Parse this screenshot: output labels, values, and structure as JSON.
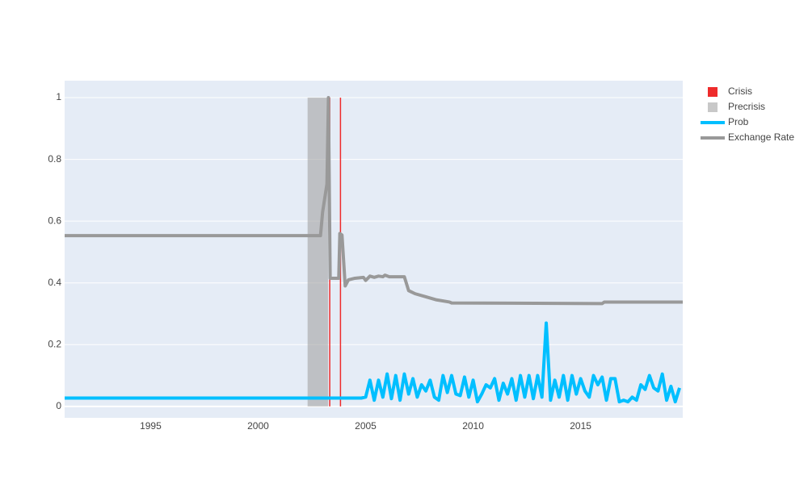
{
  "chart_data": {
    "type": "line",
    "xlim": [
      1991,
      2019.75
    ],
    "xticks": [
      1995,
      2000,
      2005,
      2010,
      2015
    ],
    "ylim": [
      -0.037,
      1.055
    ],
    "yticks": [
      0,
      0.2,
      0.4,
      0.6,
      0.8,
      1
    ],
    "ygrid": true,
    "xgrid": false,
    "legend": "outside-right",
    "series": [
      {
        "name": "Crisis",
        "type": "bar",
        "color": "#ee2b2b",
        "x": [
          2003.33,
          2003.83
        ],
        "values": [
          1,
          1
        ]
      },
      {
        "name": "Precrisis",
        "type": "bar",
        "color": "#a3a3a3",
        "x_start": [
          2002.3
        ],
        "x_end": [
          2003.25
        ],
        "values": [
          1
        ]
      },
      {
        "name": "Prob",
        "type": "line",
        "color": "#00bfff",
        "x": [
          1991,
          2004.8,
          2005,
          2005.2,
          2005.4,
          2005.6,
          2005.8,
          2006,
          2006.2,
          2006.4,
          2006.6,
          2006.8,
          2007,
          2007.2,
          2007.4,
          2007.6,
          2007.8,
          2008,
          2008.2,
          2008.4,
          2008.6,
          2008.8,
          2009,
          2009.2,
          2009.4,
          2009.6,
          2009.8,
          2010,
          2010.2,
          2010.4,
          2010.6,
          2010.8,
          2011,
          2011.2,
          2011.4,
          2011.6,
          2011.8,
          2012,
          2012.2,
          2012.4,
          2012.6,
          2012.8,
          2013,
          2013.2,
          2013.4,
          2013.6,
          2013.8,
          2014,
          2014.2,
          2014.4,
          2014.6,
          2014.8,
          2015,
          2015.2,
          2015.4,
          2015.6,
          2015.8,
          2016,
          2016.2,
          2016.4,
          2016.6,
          2016.8,
          2017,
          2017.2,
          2017.4,
          2017.6,
          2017.8,
          2018,
          2018.2,
          2018.4,
          2018.6,
          2018.8,
          2019,
          2019.2,
          2019.4,
          2019.6
        ],
        "values": [
          0.027,
          0.027,
          0.03,
          0.085,
          0.02,
          0.085,
          0.03,
          0.105,
          0.025,
          0.1,
          0.02,
          0.105,
          0.04,
          0.09,
          0.03,
          0.07,
          0.05,
          0.085,
          0.03,
          0.02,
          0.1,
          0.045,
          0.1,
          0.04,
          0.035,
          0.095,
          0.03,
          0.085,
          0.015,
          0.04,
          0.07,
          0.06,
          0.09,
          0.02,
          0.075,
          0.04,
          0.09,
          0.02,
          0.1,
          0.03,
          0.1,
          0.025,
          0.1,
          0.03,
          0.27,
          0.02,
          0.085,
          0.03,
          0.1,
          0.02,
          0.1,
          0.04,
          0.09,
          0.05,
          0.03,
          0.1,
          0.07,
          0.095,
          0.02,
          0.09,
          0.09,
          0.015,
          0.02,
          0.015,
          0.03,
          0.02,
          0.07,
          0.055,
          0.1,
          0.06,
          0.05,
          0.105,
          0.02,
          0.065,
          0.015,
          0.06
        ]
      },
      {
        "name": "Exchange Rate",
        "type": "line",
        "color": "#999999",
        "x": [
          1991,
          2002.9,
          2003,
          2003.2,
          2003.27,
          2003.35,
          2003.75,
          2003.8,
          2003.9,
          2004.05,
          2004.2,
          2004.5,
          2004.9,
          2005,
          2005.2,
          2005.4,
          2005.6,
          2005.8,
          2005.9,
          2006.1,
          2006.8,
          2007,
          2007.3,
          2007.8,
          2008.3,
          2008.9,
          2009,
          2016,
          2016.1,
          2019.75
        ],
        "values": [
          0.553,
          0.553,
          0.63,
          0.72,
          1,
          0.415,
          0.415,
          0.56,
          0.555,
          0.39,
          0.41,
          0.415,
          0.418,
          0.408,
          0.422,
          0.418,
          0.422,
          0.42,
          0.425,
          0.42,
          0.42,
          0.375,
          0.365,
          0.355,
          0.345,
          0.338,
          0.335,
          0.333,
          0.338,
          0.338
        ]
      }
    ]
  }
}
